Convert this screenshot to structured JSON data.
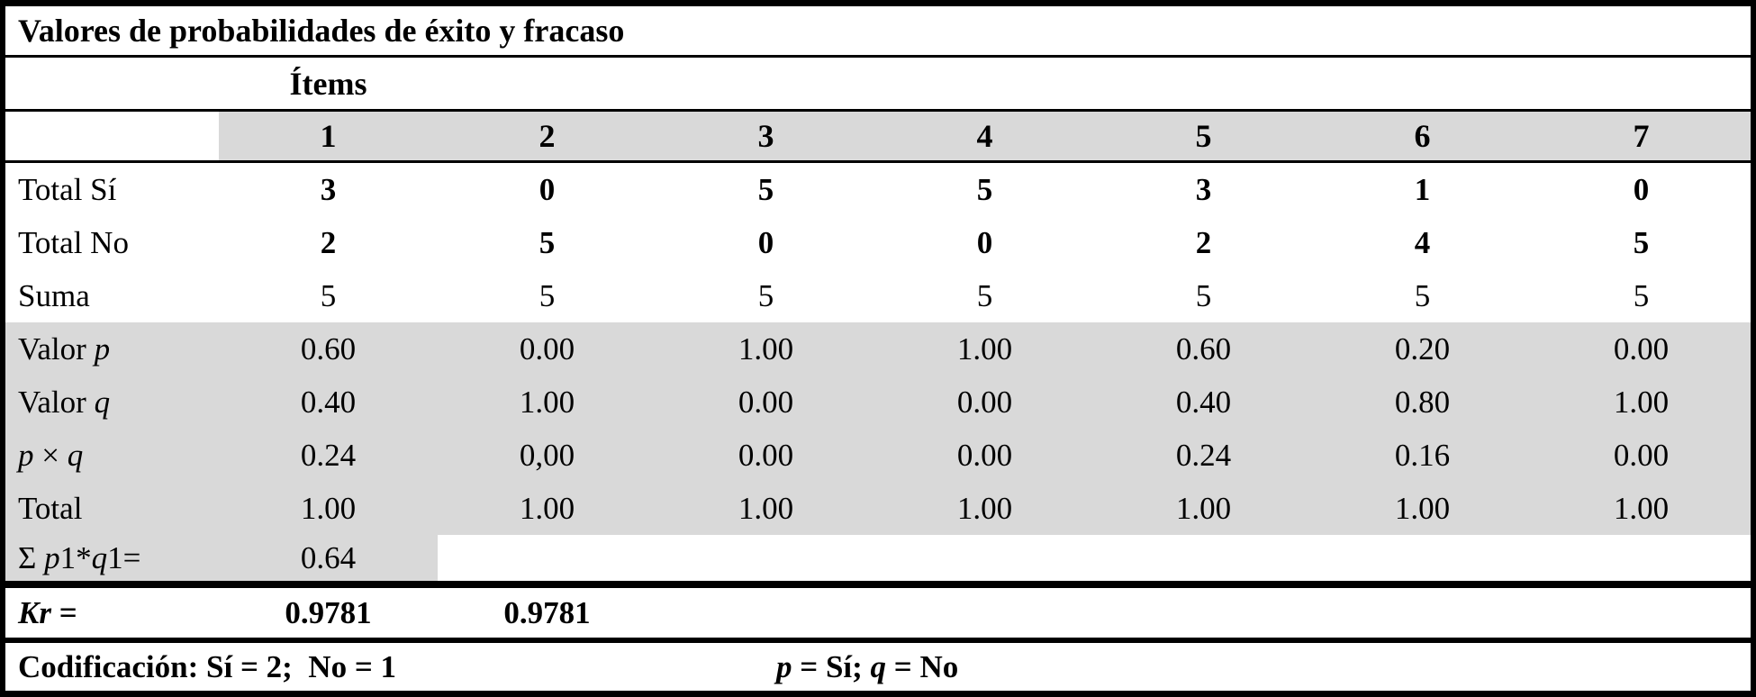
{
  "table": {
    "title": "Valores de probabilidades de éxito y fracaso",
    "items_header": "Ítems",
    "columns": [
      "1",
      "2",
      "3",
      "4",
      "5",
      "6",
      "7"
    ],
    "rows": [
      {
        "label": [
          {
            "t": "Total Sí"
          }
        ],
        "values": [
          "3",
          "0",
          "5",
          "5",
          "3",
          "1",
          "0"
        ],
        "values_bold": true,
        "shade": "none"
      },
      {
        "label": [
          {
            "t": "Total No"
          }
        ],
        "values": [
          "2",
          "5",
          "0",
          "0",
          "2",
          "4",
          "5"
        ],
        "values_bold": true,
        "shade": "none"
      },
      {
        "label": [
          {
            "t": "Suma"
          }
        ],
        "values": [
          "5",
          "5",
          "5",
          "5",
          "5",
          "5",
          "5"
        ],
        "values_bold": false,
        "shade": "none"
      },
      {
        "label": [
          {
            "t": "Valor "
          },
          {
            "t": "p",
            "i": true
          }
        ],
        "values": [
          "0.60",
          "0.00",
          "1.00",
          "1.00",
          "0.60",
          "0.20",
          "0.00"
        ],
        "values_bold": false,
        "shade": "full"
      },
      {
        "label": [
          {
            "t": "Valor "
          },
          {
            "t": "q",
            "i": true
          }
        ],
        "values": [
          "0.40",
          "1.00",
          "0.00",
          "0.00",
          "0.40",
          "0.80",
          "1.00"
        ],
        "values_bold": false,
        "shade": "full"
      },
      {
        "label": [
          {
            "t": "p",
            "i": true
          },
          {
            "t": " × "
          },
          {
            "t": "q",
            "i": true
          }
        ],
        "values": [
          "0.24",
          "0,00",
          "0.00",
          "0.00",
          "0.24",
          "0.16",
          "0.00"
        ],
        "values_bold": false,
        "shade": "full"
      },
      {
        "label": [
          {
            "t": "Total"
          }
        ],
        "values": [
          "1.00",
          "1.00",
          "1.00",
          "1.00",
          "1.00",
          "1.00",
          "1.00"
        ],
        "values_bold": false,
        "shade": "full"
      },
      {
        "label": [
          {
            "t": "Σ "
          },
          {
            "t": "p",
            "i": true
          },
          {
            "t": "1*"
          },
          {
            "t": "q",
            "i": true
          },
          {
            "t": "1="
          }
        ],
        "values": [
          "0.64",
          "",
          "",
          "",
          "",
          "",
          ""
        ],
        "values_bold": false,
        "shade": "label_col1"
      }
    ],
    "kr": {
      "label": [
        {
          "t": "Kr",
          "i": true
        },
        {
          "t": " ="
        }
      ],
      "values": [
        "0.9781",
        "0.9781"
      ]
    },
    "footer": {
      "codification": "Codificación: Sí = 2;  No = 1",
      "legend": [
        {
          "t": "p",
          "i": true
        },
        {
          "t": " = Sí; "
        },
        {
          "t": "q",
          "i": true
        },
        {
          "t": " = No"
        }
      ]
    }
  },
  "colors": {
    "shaded_cell": "#d9d9d9",
    "border": "#000000",
    "background": "#ffffff"
  }
}
